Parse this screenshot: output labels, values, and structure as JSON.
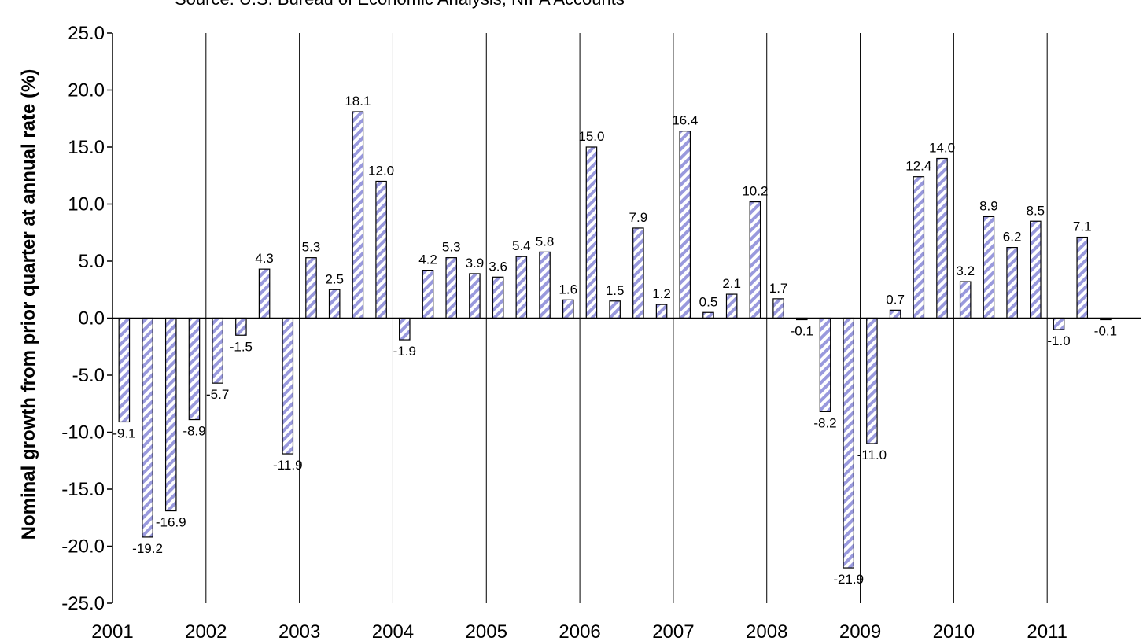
{
  "chart_data": {
    "type": "bar",
    "subtitle": "Source: U.S. Bureau of Economic Analysis, NIPA Accounts",
    "ylabel": "Nominal growth from prior quarter at annual rate (%)",
    "xlabel": "",
    "ylim": [
      -25,
      25
    ],
    "yticks": [
      "25.0",
      "20.0",
      "15.0",
      "10.0",
      "5.0",
      "0.0",
      "-5.0",
      "-10.0",
      "-15.0",
      "-20.0",
      "-25.0"
    ],
    "year_labels": [
      "2001",
      "2002",
      "2003",
      "2004",
      "2005",
      "2006",
      "2007",
      "2008",
      "2009",
      "2010",
      "2011"
    ],
    "quarters_per_year": 4,
    "values": [
      -9.1,
      -19.2,
      -16.9,
      -8.9,
      -5.7,
      -1.5,
      4.3,
      -11.9,
      5.3,
      2.5,
      18.1,
      12.0,
      -1.9,
      4.2,
      5.3,
      3.9,
      3.6,
      5.4,
      5.8,
      1.6,
      15.0,
      1.5,
      7.9,
      1.2,
      16.4,
      0.5,
      2.1,
      10.2,
      1.7,
      -0.1,
      -8.2,
      -21.9,
      -11.0,
      0.7,
      12.4,
      14.0,
      3.2,
      8.9,
      6.2,
      8.5,
      -1.0,
      7.1,
      -0.1
    ],
    "value_labels": [
      "-9.1",
      "-19.2",
      "-16.9",
      "-8.9",
      "-5.7",
      "-1.5",
      "4.3",
      "-11.9",
      "5.3",
      "2.5",
      "18.1",
      "12.0",
      "-1.9",
      "4.2",
      "5.3",
      "3.9",
      "3.6",
      "5.4",
      "5.8",
      "1.6",
      "15.0",
      "1.5",
      "7.9",
      "1.2",
      "16.4",
      "0.5",
      "2.1",
      "10.2",
      "1.7",
      "-0.1",
      "-8.2",
      "-21.9",
      "-11.0",
      "0.7",
      "12.4",
      "14.0",
      "3.2",
      "8.9",
      "6.2",
      "8.5",
      "-1.0",
      "7.1",
      "-0.1"
    ],
    "grid": "vertical lines at year boundaries",
    "colors": {
      "bar_hatch": "#9999dd",
      "bar_fill": "#ffffff",
      "bar_outline": "#000000"
    }
  }
}
